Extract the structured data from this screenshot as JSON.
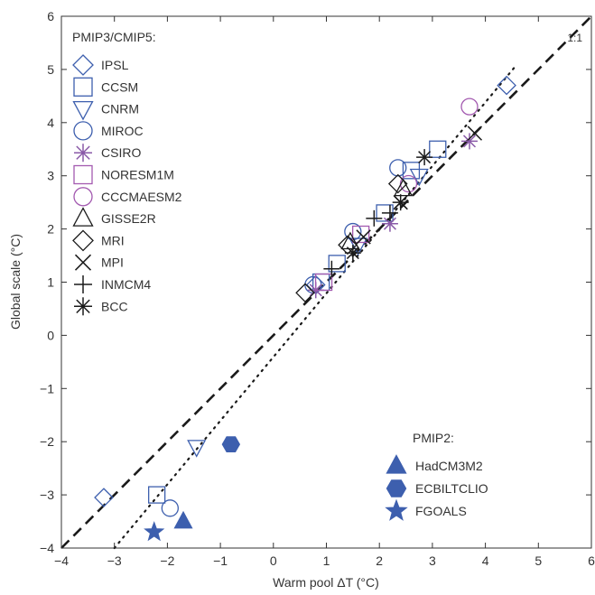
{
  "chart_data": {
    "type": "scatter",
    "title": "",
    "xlabel": "Warm pool ΔT (°C)",
    "ylabel": "Global scale (°C)",
    "xlim": [
      -4,
      6
    ],
    "ylim": [
      -4,
      6
    ],
    "xticks": [
      -4,
      -3,
      -2,
      -1,
      0,
      1,
      2,
      3,
      4,
      5,
      6
    ],
    "yticks": [
      -4,
      -3,
      -2,
      -1,
      0,
      1,
      2,
      3,
      4,
      5,
      6
    ],
    "xtick_labels": [
      "−4",
      "−3",
      "−2",
      "−1",
      "0",
      "1",
      "2",
      "3",
      "4",
      "5",
      "6"
    ],
    "ytick_labels": [
      "−4",
      "−3",
      "−2",
      "−1",
      "0",
      "1",
      "2",
      "3",
      "4",
      "5",
      "6"
    ],
    "grid": false,
    "reference_line": {
      "label": "1:1",
      "style": "dashed",
      "color": "#1a1a1a",
      "x": [
        -4,
        6
      ],
      "y": [
        -4,
        6
      ]
    },
    "regression_line": {
      "style": "dotted",
      "color": "#1a1a1a",
      "x": [
        -3.0,
        4.6
      ],
      "y": [
        -4.0,
        5.1
      ]
    },
    "legend_groups": [
      {
        "title": "PMIP3/CMIP5:",
        "placement": "top-left"
      },
      {
        "title": "PMIP2:",
        "placement": "bottom-right"
      }
    ],
    "series": [
      {
        "name": "IPSL",
        "group": 0,
        "marker": "diamond",
        "filled": false,
        "color": "#3d5fae",
        "x": [
          -3.2,
          0.8,
          4.4
        ],
        "y": [
          -3.05,
          0.95,
          4.7
        ]
      },
      {
        "name": "CCSM",
        "group": 0,
        "marker": "square",
        "filled": false,
        "color": "#3d5fae",
        "x": [
          -2.2,
          0.9,
          1.2,
          2.1,
          2.6,
          3.1
        ],
        "y": [
          -3.0,
          1.0,
          1.35,
          2.3,
          3.1,
          3.5
        ]
      },
      {
        "name": "CNRM",
        "group": 0,
        "marker": "triangle-down",
        "filled": false,
        "color": "#3d5fae",
        "x": [
          -1.45,
          1.6,
          2.75
        ],
        "y": [
          -2.1,
          1.7,
          3.0
        ]
      },
      {
        "name": "MIROC",
        "group": 0,
        "marker": "circle",
        "filled": false,
        "color": "#3d5fae",
        "x": [
          -1.95,
          0.75,
          1.5,
          2.35
        ],
        "y": [
          -3.25,
          0.95,
          1.95,
          3.15
        ]
      },
      {
        "name": "CSIRO",
        "group": 0,
        "marker": "asterisk",
        "filled": false,
        "color": "#8a5aa8",
        "x": [
          0.8,
          2.2,
          3.7
        ],
        "y": [
          0.85,
          2.1,
          3.65
        ]
      },
      {
        "name": "NORESM1M",
        "group": 0,
        "marker": "square",
        "filled": false,
        "color": "#a35ab0",
        "x": [
          0.95,
          1.65
        ],
        "y": [
          1.0,
          1.9
        ]
      },
      {
        "name": "CCCMAESM2",
        "group": 0,
        "marker": "circle",
        "filled": false,
        "color": "#a35ab0",
        "x": [
          2.55,
          3.7
        ],
        "y": [
          2.85,
          4.3
        ]
      },
      {
        "name": "GISSE2R",
        "group": 0,
        "marker": "triangle-up",
        "filled": false,
        "color": "#1a1a1a",
        "x": [
          1.45,
          2.45
        ],
        "y": [
          1.75,
          2.75
        ]
      },
      {
        "name": "MRI",
        "group": 0,
        "marker": "diamond",
        "filled": false,
        "color": "#1a1a1a",
        "x": [
          0.6,
          1.4,
          2.35
        ],
        "y": [
          0.8,
          1.7,
          2.85
        ]
      },
      {
        "name": "MPI",
        "group": 0,
        "marker": "x",
        "filled": false,
        "color": "#1a1a1a",
        "x": [
          1.7,
          2.4,
          3.8
        ],
        "y": [
          1.85,
          2.5,
          3.8
        ]
      },
      {
        "name": "INMCM4",
        "group": 0,
        "marker": "plus",
        "filled": false,
        "color": "#1a1a1a",
        "x": [
          1.1,
          1.9,
          2.2
        ],
        "y": [
          1.25,
          2.2,
          2.3
        ]
      },
      {
        "name": "BCC",
        "group": 0,
        "marker": "asterisk",
        "filled": false,
        "color": "#1a1a1a",
        "x": [
          1.5,
          2.4,
          2.85
        ],
        "y": [
          1.55,
          2.5,
          3.35
        ]
      },
      {
        "name": "HadCM3M2",
        "group": 1,
        "marker": "triangle-up",
        "filled": true,
        "color": "#3d5fae",
        "x": [
          -1.7
        ],
        "y": [
          -3.5
        ]
      },
      {
        "name": "ECBILTCLIO",
        "group": 1,
        "marker": "hexagon",
        "filled": true,
        "color": "#3d5fae",
        "x": [
          -0.8
        ],
        "y": [
          -2.05
        ]
      },
      {
        "name": "FGOALS",
        "group": 1,
        "marker": "star",
        "filled": true,
        "color": "#3d5fae",
        "x": [
          -2.25
        ],
        "y": [
          -3.7
        ]
      }
    ]
  }
}
